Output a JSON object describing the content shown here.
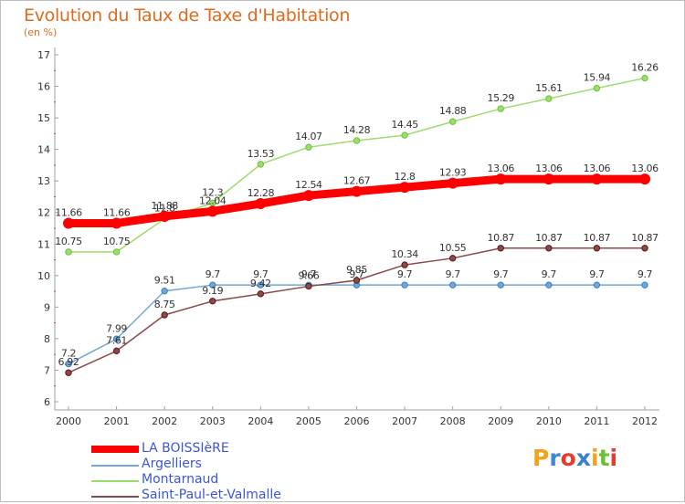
{
  "chart_data": {
    "type": "line",
    "title": "Evolution du Taux de Taxe d'Habitation",
    "unit": "(en %)",
    "x": [
      "2000",
      "2001",
      "2002",
      "2003",
      "2004",
      "2005",
      "2006",
      "2007",
      "2008",
      "2009",
      "2010",
      "2011",
      "2012"
    ],
    "ylim": [
      6,
      17
    ],
    "yticks": [
      "6",
      "7",
      "8",
      "9",
      "10",
      "11",
      "12",
      "13",
      "14",
      "15",
      "16",
      "17"
    ],
    "grid": false,
    "legend_position": "bottom-left",
    "series": [
      {
        "name": "LA BOISSIèRE",
        "color": "#ff0000",
        "emphasis": true,
        "values": [
          11.66,
          11.66,
          11.88,
          12.04,
          12.28,
          12.54,
          12.67,
          12.8,
          12.93,
          13.06,
          13.06,
          13.06,
          13.06
        ],
        "labels": [
          "11.66",
          "11.66",
          "11.88",
          "12.04",
          "12.28",
          "12.54",
          "12.67",
          "12.8",
          "12.93",
          "13.06",
          "13.06",
          "13.06",
          "13.06"
        ]
      },
      {
        "name": "Argelliers",
        "color": "#6fa7d8",
        "marker": "#3d7fc0",
        "values": [
          7.2,
          7.99,
          9.51,
          9.7,
          9.7,
          9.7,
          9.7,
          9.7,
          9.7,
          9.7,
          9.7,
          9.7,
          9.7
        ],
        "labels": [
          "7.2",
          "7.99",
          "9.51",
          "9.7",
          "9.7",
          "9.7",
          "9.7",
          "9.7",
          "9.7",
          "9.7",
          "9.7",
          "9.7",
          "9.7"
        ]
      },
      {
        "name": "Montarnaud",
        "color": "#9edc6e",
        "marker": "#6bc23c",
        "values": [
          10.75,
          10.75,
          11.8,
          12.3,
          13.53,
          14.07,
          14.28,
          14.45,
          14.88,
          15.29,
          15.61,
          15.94,
          16.26
        ],
        "labels": [
          "10.75",
          "10.75",
          "11.8",
          "12.3",
          "13.53",
          "14.07",
          "14.28",
          "14.45",
          "14.88",
          "15.29",
          "15.61",
          "15.94",
          "16.26"
        ]
      },
      {
        "name": "Saint-Paul-et-Valmalle",
        "color": "#8a4a4a",
        "marker": "#5a1818",
        "values": [
          6.92,
          7.61,
          8.75,
          9.19,
          9.42,
          9.66,
          9.85,
          10.34,
          10.55,
          10.87,
          10.87,
          10.87,
          10.87
        ],
        "labels": [
          "6.92",
          "7.61",
          "8.75",
          "9.19",
          "9.42",
          "9.66",
          "9.85",
          "10.34",
          "10.55",
          "10.87",
          "10.87",
          "10.87",
          "10.87"
        ]
      }
    ]
  },
  "logo": {
    "text": "Proxiti",
    "letters": [
      "P",
      "r",
      "o",
      "x",
      "i",
      "t",
      "i"
    ],
    "colors": [
      "#f6a11b",
      "#3b88d8",
      "#e83a2e",
      "#3a7fd0",
      "#f6a11b",
      "#6cbf3a",
      "#e83a2e"
    ]
  }
}
